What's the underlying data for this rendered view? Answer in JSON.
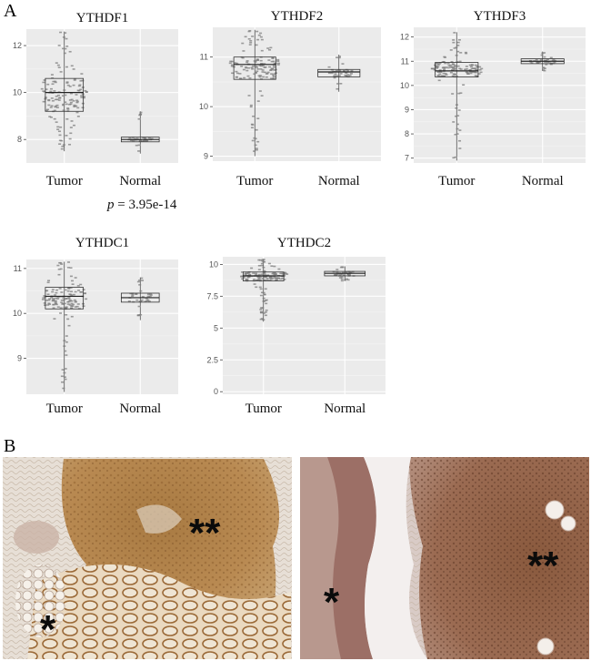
{
  "panel_labels": {
    "a": "A",
    "b": "B"
  },
  "p_value": {
    "italic": "p",
    "rest": " = 3.95e-14"
  },
  "chart_data": [
    {
      "type": "box",
      "title": "YTHDF1",
      "categories": [
        "Tumor",
        "Normal"
      ],
      "ylim": [
        7.0,
        12.7
      ],
      "yticks": [
        8,
        10,
        12
      ],
      "grid": true,
      "groups": [
        {
          "name": "Tumor",
          "min": 7.5,
          "q1": 9.2,
          "median": 10.0,
          "q3": 10.6,
          "max": 12.6
        },
        {
          "name": "Normal",
          "min": 7.4,
          "q1": 7.9,
          "median": 8.0,
          "q3": 8.1,
          "max": 9.2
        }
      ]
    },
    {
      "type": "box",
      "title": "YTHDF2",
      "categories": [
        "Tumor",
        "Normal"
      ],
      "ylim": [
        8.9,
        11.6
      ],
      "yticks": [
        9,
        10,
        11
      ],
      "grid": true,
      "groups": [
        {
          "name": "Tumor",
          "min": 9.0,
          "q1": 10.55,
          "median": 10.85,
          "q3": 11.0,
          "max": 11.55
        },
        {
          "name": "Normal",
          "min": 10.3,
          "q1": 10.6,
          "median": 10.7,
          "q3": 10.75,
          "max": 11.05
        }
      ]
    },
    {
      "type": "box",
      "title": "YTHDF3",
      "categories": [
        "Tumor",
        "Normal"
      ],
      "ylim": [
        6.8,
        12.4
      ],
      "yticks": [
        7,
        8,
        9,
        10,
        11,
        12
      ],
      "grid": true,
      "groups": [
        {
          "name": "Tumor",
          "min": 6.9,
          "q1": 10.35,
          "median": 10.6,
          "q3": 10.95,
          "max": 12.2
        },
        {
          "name": "Normal",
          "min": 10.6,
          "q1": 10.9,
          "median": 11.0,
          "q3": 11.1,
          "max": 11.4
        }
      ]
    },
    {
      "type": "box",
      "title": "YTHDC1",
      "categories": [
        "Tumor",
        "Normal"
      ],
      "ylim": [
        8.2,
        11.2
      ],
      "yticks": [
        9,
        10,
        11
      ],
      "grid": true,
      "groups": [
        {
          "name": "Tumor",
          "min": 8.25,
          "q1": 10.1,
          "median": 10.38,
          "q3": 10.58,
          "max": 11.15
        },
        {
          "name": "Normal",
          "min": 9.85,
          "q1": 10.25,
          "median": 10.35,
          "q3": 10.45,
          "max": 10.8
        }
      ]
    },
    {
      "type": "box",
      "title": "YTHDC2",
      "categories": [
        "Tumor",
        "Normal"
      ],
      "ylim": [
        -0.2,
        10.6
      ],
      "yticks": [
        0,
        2.5,
        5,
        7.5,
        10
      ],
      "grid": true,
      "groups": [
        {
          "name": "Tumor",
          "min": 5.5,
          "q1": 8.7,
          "median": 9.1,
          "q3": 9.4,
          "max": 10.4
        },
        {
          "name": "Normal",
          "min": 8.7,
          "q1": 9.1,
          "median": 9.3,
          "q3": 9.45,
          "max": 9.85
        }
      ]
    }
  ],
  "micrographs": [
    {
      "asterisks": [
        "**",
        "*"
      ]
    },
    {
      "asterisks": [
        "**",
        "*"
      ]
    }
  ]
}
